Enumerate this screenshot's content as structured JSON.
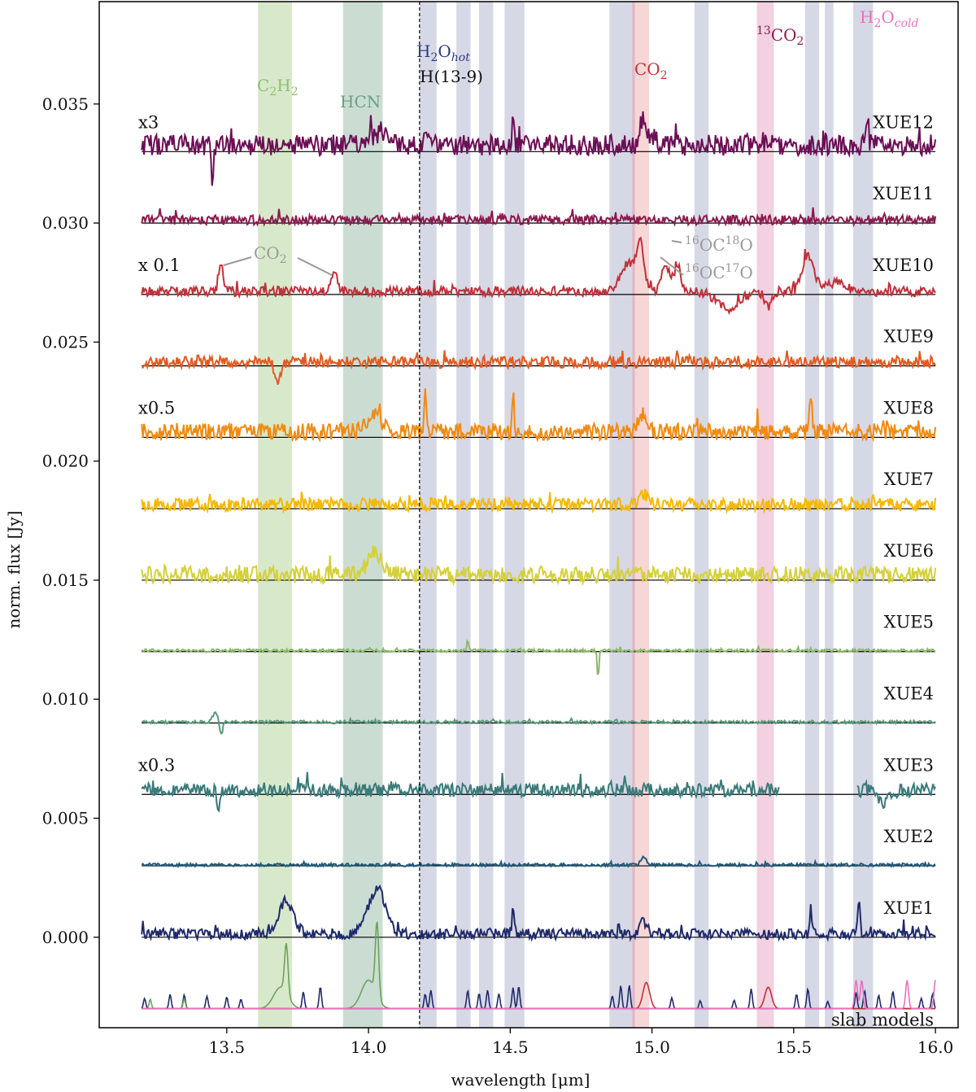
{
  "chart_data": {
    "type": "line",
    "title": "",
    "xlabel": "wavelength [μm]",
    "ylabel": "norm. flux [Jy]",
    "xlim": [
      13.05,
      16.08
    ],
    "ylim": [
      -0.0038,
      0.0393
    ],
    "xticks": [
      "13.5",
      "14.0",
      "14.5",
      "15.0",
      "15.5",
      "16.0"
    ],
    "yticks": [
      "0.000",
      "0.005",
      "0.010",
      "0.015",
      "0.020",
      "0.025",
      "0.030",
      "0.035"
    ],
    "x_range_data": [
      13.2,
      16.0
    ],
    "vline": 14.18,
    "vline_label": "H(13-9)",
    "bands": [
      {
        "molecule": "C2H2",
        "x0": 13.61,
        "x1": 13.73,
        "color": "#8fbf6a"
      },
      {
        "molecule": "HCN",
        "x0": 13.91,
        "x1": 14.05,
        "color": "#6a9f80"
      },
      {
        "molecule": "H2O_hot",
        "x0": 14.18,
        "x1": 14.24,
        "color": "#8a8fb5"
      },
      {
        "molecule": "H2O_hot",
        "x0": 14.31,
        "x1": 14.36,
        "color": "#8a8fb5"
      },
      {
        "molecule": "H2O_hot",
        "x0": 14.39,
        "x1": 14.44,
        "color": "#8a8fb5"
      },
      {
        "molecule": "H2O_hot",
        "x0": 14.48,
        "x1": 14.55,
        "color": "#8a8fb5"
      },
      {
        "molecule": "H2O_hot",
        "x0": 14.85,
        "x1": 14.94,
        "color": "#8a8fb5"
      },
      {
        "molecule": "CO2",
        "x0": 14.93,
        "x1": 14.99,
        "color": "#e88a8a"
      },
      {
        "molecule": "H2O_hot",
        "x0": 15.15,
        "x1": 15.2,
        "color": "#8a8fb5"
      },
      {
        "molecule": "13CO2",
        "x0": 15.37,
        "x1": 15.43,
        "color": "#d97aa5"
      },
      {
        "molecule": "H2O_hot",
        "x0": 15.54,
        "x1": 15.59,
        "color": "#8a8fb5"
      },
      {
        "molecule": "H2O_hot",
        "x0": 15.61,
        "x1": 15.64,
        "color": "#8a8fb5"
      },
      {
        "molecule": "H2O_hot",
        "x0": 15.71,
        "x1": 15.78,
        "color": "#8a8fb5"
      }
    ],
    "molecule_labels": {
      "c2h2": {
        "main": "C",
        "sub1": "2",
        "mid": "H",
        "sub2": "2"
      },
      "hcn": "HCN",
      "h2o_hot": {
        "main": "H",
        "sub": "2",
        "rest": "O",
        "tag": "hot"
      },
      "co2": {
        "main": "CO",
        "sub": "2"
      },
      "co2_13": {
        "sup": "13",
        "main": "CO",
        "sub": "2"
      },
      "h2o_cold": {
        "main": "H",
        "sub": "2",
        "rest": "O",
        "tag": "cold"
      },
      "co2_gray": {
        "main": "CO",
        "sub": "2"
      },
      "oc18o": {
        "sup1": "16",
        "mid": "OC",
        "sup2": "18",
        "end": "O"
      },
      "oc17o": {
        "sup1": "16",
        "mid": "OC",
        "sup2": "17",
        "end": "O"
      }
    },
    "series": [
      {
        "name": "XUE12",
        "baseline": 0.033,
        "color": "#6b0f55",
        "scale": "x3",
        "amp": 0.00055,
        "seed": 12,
        "features": [
          [
            13.45,
            -0.0018,
            0.004
          ],
          [
            14.05,
            0.0006,
            0.03
          ],
          [
            14.97,
            0.0011,
            0.012
          ],
          [
            14.2,
            0.0009,
            0.004
          ],
          [
            14.51,
            0.0012,
            0.004
          ],
          [
            15.76,
            0.0012,
            0.004
          ]
        ]
      },
      {
        "name": "XUE11",
        "baseline": 0.03,
        "color": "#8b1a4f",
        "scale": "",
        "amp": 0.00025,
        "seed": 11,
        "features": []
      },
      {
        "name": "XUE10",
        "baseline": 0.027,
        "color": "#c0303a",
        "scale": "x 0.1",
        "amp": 0.00025,
        "seed": 10,
        "features": [
          [
            13.48,
            0.0013,
            0.008
          ],
          [
            13.88,
            0.0009,
            0.01
          ],
          [
            14.92,
            0.0012,
            0.03
          ],
          [
            14.96,
            0.0017,
            0.012
          ],
          [
            15.05,
            0.0011,
            0.015
          ],
          [
            15.09,
            0.0012,
            0.01
          ],
          [
            15.27,
            -0.0007,
            0.04
          ],
          [
            15.41,
            -0.0007,
            0.012
          ],
          [
            15.55,
            0.0015,
            0.02
          ],
          [
            15.65,
            0.0004,
            0.03
          ]
        ]
      },
      {
        "name": "XUE9",
        "baseline": 0.024,
        "color": "#e05a20",
        "scale": "",
        "amp": 0.0003,
        "seed": 9,
        "features": [
          [
            13.68,
            -0.0008,
            0.01
          ]
        ]
      },
      {
        "name": "XUE8",
        "baseline": 0.021,
        "color": "#f08a10",
        "scale": "x0.5",
        "amp": 0.00045,
        "seed": 8,
        "features": [
          [
            14.02,
            0.0008,
            0.025
          ],
          [
            14.97,
            0.0008,
            0.015
          ],
          [
            14.2,
            0.0018,
            0.004
          ],
          [
            14.51,
            0.0018,
            0.004
          ],
          [
            15.56,
            0.0017,
            0.004
          ]
        ]
      },
      {
        "name": "XUE7",
        "baseline": 0.018,
        "color": "#f5b800",
        "scale": "",
        "amp": 0.00035,
        "seed": 7,
        "features": [
          [
            14.97,
            0.0005,
            0.015
          ]
        ]
      },
      {
        "name": "XUE6",
        "baseline": 0.015,
        "color": "#d4d03a",
        "scale": "",
        "amp": 0.00045,
        "seed": 6,
        "features": [
          [
            14.02,
            0.0009,
            0.025
          ]
        ]
      },
      {
        "name": "XUE5",
        "baseline": 0.012,
        "color": "#8cb86a",
        "scale": "",
        "amp": 8e-05,
        "seed": 5,
        "features": [
          [
            14.81,
            -0.0012,
            0.003
          ],
          [
            14.35,
            0.0005,
            0.003
          ]
        ]
      },
      {
        "name": "XUE4",
        "baseline": 0.009,
        "color": "#5a9a7a",
        "scale": "",
        "amp": 8e-05,
        "seed": 4,
        "features": [
          [
            13.46,
            0.0004,
            0.01
          ],
          [
            13.48,
            -0.0006,
            0.005
          ]
        ]
      },
      {
        "name": "XUE3",
        "baseline": 0.006,
        "color": "#3a7a7a",
        "scale": "x0.3",
        "amp": 0.00035,
        "seed": 3,
        "gap": [
          15.45,
          15.72
        ],
        "features": [
          [
            13.47,
            -0.0009,
            0.005
          ],
          [
            15.82,
            -0.0005,
            0.02
          ]
        ]
      },
      {
        "name": "XUE2",
        "baseline": 0.003,
        "color": "#1f5a7a",
        "scale": "",
        "amp": 8e-05,
        "seed": 2,
        "features": [
          [
            14.97,
            0.0003,
            0.01
          ]
        ]
      },
      {
        "name": "XUE1",
        "baseline": 0.0,
        "color": "#1f2a6b",
        "scale": "",
        "amp": 0.00028,
        "seed": 1,
        "features": [
          [
            13.71,
            0.0014,
            0.025
          ],
          [
            14.03,
            0.0019,
            0.03
          ],
          [
            14.97,
            0.0005,
            0.015
          ],
          [
            14.51,
            0.0011,
            0.004
          ],
          [
            15.56,
            0.0011,
            0.004
          ],
          [
            15.73,
            0.0013,
            0.004
          ]
        ]
      }
    ],
    "slab_models": {
      "name": "slab models",
      "baseline": -0.003,
      "water_lines": [
        13.21,
        13.3,
        13.35,
        13.43,
        13.5,
        13.55,
        13.77,
        13.83,
        14.2,
        14.22,
        14.35,
        14.39,
        14.42,
        14.46,
        14.51,
        14.53,
        14.86,
        14.89,
        14.92,
        15.07,
        15.17,
        15.29,
        15.35,
        15.51,
        15.55,
        15.62,
        15.72,
        15.75,
        15.8,
        15.85,
        15.95,
        15.99
      ],
      "c2h2_peak": 13.71,
      "hcn_peak": 14.03,
      "co2_peak": 14.98,
      "co2_13_peak": 15.41,
      "cold_water_lines": [
        15.72,
        15.74,
        15.9,
        16.0
      ],
      "colors": {
        "water": "#1f2a6b",
        "c2h2": "#6aa35a",
        "hcn": "#6aa35a",
        "co2": "#c0303a",
        "co2_13": "#c0303a",
        "cold": "#e870c0"
      }
    }
  }
}
